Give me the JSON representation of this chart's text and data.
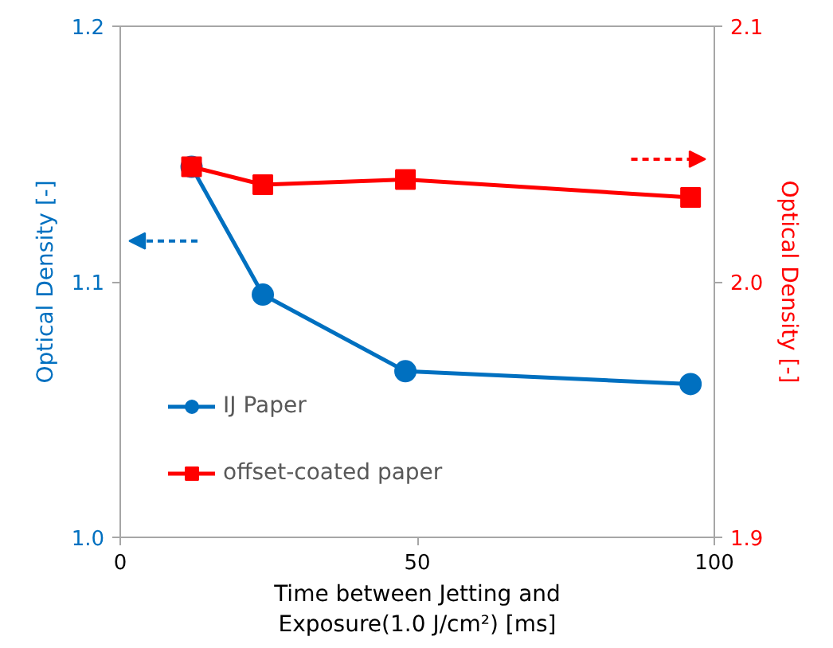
{
  "chart_data": {
    "type": "line",
    "xlabel": "Time between Jetting and\nExposure(1.0 J/cm²) [ms]",
    "ylabel": "Optical Density [-]",
    "y2label": "Optical Density [-]",
    "x": [
      12,
      24,
      48,
      96
    ],
    "xlim": [
      0,
      100
    ],
    "xticks": [
      0,
      50,
      100
    ],
    "ylim": [
      1.0,
      1.2
    ],
    "yticks": [
      {
        "value": 1,
        "label": "1.0"
      },
      1.1,
      1.2
    ],
    "y2lim": [
      1.9,
      2.1
    ],
    "y2ticks": [
      1.9,
      {
        "value": 2,
        "label": "2.0"
      },
      2.1
    ],
    "grid": false,
    "legend": "bottom left",
    "line_style": "solid",
    "series": [
      {
        "name": "IJ Paper",
        "color": "#0070c0",
        "marker": "circle",
        "values": [
          1.145,
          1.095,
          1.065,
          1.06
        ]
      },
      {
        "name": "offset-coated paper",
        "color": "#ff0000",
        "marker": "square",
        "axis": "y2",
        "values": [
          2.045,
          2.038,
          2.04,
          2.033
        ]
      }
    ]
  }
}
